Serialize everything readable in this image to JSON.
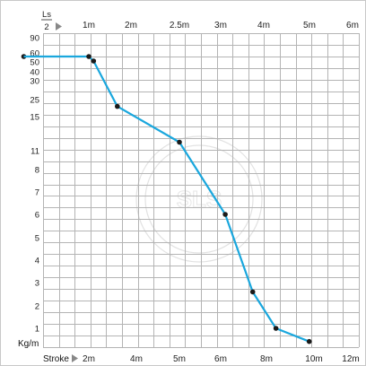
{
  "chart_data": {
    "type": "line",
    "colors": {
      "series": "#1aa7dd",
      "points": "#1a1a1a",
      "grid": "#b4b4b4"
    },
    "left_axis": {
      "unit_label": "Kg/m",
      "ticks": [
        "90",
        "60",
        "50",
        "40",
        "30",
        "25",
        "15",
        "11",
        "8",
        "7",
        "6",
        "5",
        "4",
        "3",
        "2",
        "1"
      ]
    },
    "top_axis": {
      "label_numerator": "Ls",
      "label_denominator": "2",
      "ticks": [
        "1m",
        "2m",
        "2.5m",
        "3m",
        "4m",
        "5m",
        "6m"
      ]
    },
    "bottom_axis": {
      "label": "Stroke",
      "ticks": [
        "2m",
        "4m",
        "5m",
        "6m",
        "8m",
        "10m",
        "12m"
      ]
    },
    "series": [
      {
        "points": [
          {
            "stroke": 0.1,
            "load": 56
          },
          {
            "stroke": 2.0,
            "load": 56
          },
          {
            "stroke": 2.2,
            "load": 51
          },
          {
            "stroke": 3.2,
            "load": 21
          },
          {
            "stroke": 5.0,
            "load": 12
          },
          {
            "stroke": 6.2,
            "load": 6
          },
          {
            "stroke": 7.4,
            "load": 2.6
          },
          {
            "stroke": 8.4,
            "load": 1
          },
          {
            "stroke": 9.8,
            "load": 0.3
          }
        ]
      }
    ]
  }
}
